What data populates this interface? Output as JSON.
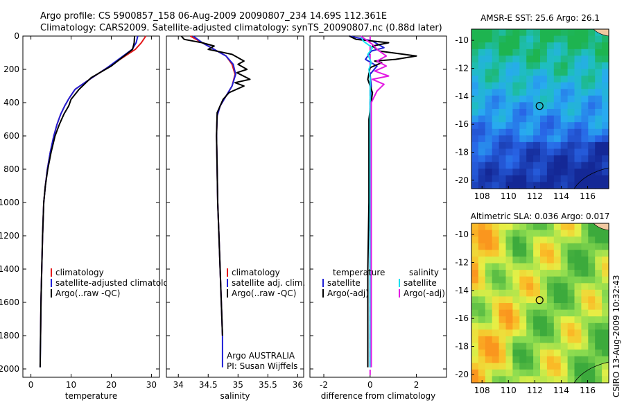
{
  "header": {
    "line1": "Argo profile: CS 5900857_158 06-Aug-2009 20090807_234 14.69S 112.361E",
    "line2": "Climatology: CARS2009. Satellite-adjusted climatology: synTS_20090807.nc (0.88d later)"
  },
  "credit": "CSIRO 13-Aug-2009 10:32:43",
  "colors": {
    "climatology": "#e41a1c",
    "satellite": "#1f1fd6",
    "argo": "#000000",
    "sal_satellite": "#19e0ef",
    "sal_argo": "#e31ae3"
  },
  "chart_data": [
    {
      "type": "line",
      "xlabel": "temperature",
      "ylabel": "",
      "xlim": [
        -2,
        32
      ],
      "ylim": [
        2050,
        0
      ],
      "xticks": [
        "0",
        "10",
        "20",
        "30"
      ],
      "yticks": [
        "0",
        "200",
        "400",
        "600",
        "800",
        "1000",
        "1200",
        "1400",
        "1600",
        "1800",
        "2000"
      ],
      "legend": [
        "climatology",
        "satellite-adjusted climatology",
        "Argo(..raw -QC)"
      ],
      "series": [
        {
          "name": "climatology",
          "color": "#e41a1c",
          "x": [
            28.6,
            27.5,
            26,
            19,
            14,
            11,
            9.6,
            8.4,
            7.4,
            6.5,
            5.7,
            4.8,
            4.1,
            3.6,
            3.2,
            2.9,
            2.7,
            2.5,
            2.4
          ],
          "y": [
            0,
            40,
            80,
            190,
            270,
            320,
            370,
            420,
            470,
            530,
            600,
            700,
            800,
            900,
            1000,
            1200,
            1400,
            1600,
            1800
          ]
        },
        {
          "name": "satellite-adjusted climatology",
          "color": "#1f1fd6",
          "x": [
            26.6,
            26.2,
            25.2,
            19,
            14,
            11,
            9.6,
            8.4,
            7.4,
            6.5,
            5.7,
            4.8,
            4.1,
            3.6,
            3.2,
            2.9,
            2.7,
            2.5,
            2.4,
            2.3
          ],
          "y": [
            0,
            40,
            80,
            190,
            270,
            320,
            370,
            420,
            470,
            530,
            600,
            700,
            800,
            900,
            1000,
            1200,
            1400,
            1600,
            1800,
            1990
          ]
        },
        {
          "name": "Argo(..raw -QC)",
          "color": "#000000",
          "x": [
            25.8,
            25.7,
            25.3,
            20,
            15,
            12,
            10,
            9.4,
            8.2,
            7.1,
            6,
            5,
            4.2,
            3.6,
            3.2,
            2.9,
            2.7,
            2.5,
            2.4,
            2.3
          ],
          "y": [
            0,
            40,
            80,
            180,
            250,
            320,
            380,
            420,
            470,
            530,
            600,
            700,
            800,
            900,
            1000,
            1200,
            1400,
            1600,
            1800,
            1990
          ]
        }
      ]
    },
    {
      "type": "line",
      "xlabel": "salinity",
      "ylabel": "",
      "xlim": [
        33.8,
        36.1
      ],
      "ylim": [
        2050,
        0
      ],
      "xticks": [
        "34",
        "34.5",
        "35",
        "35.5",
        "36"
      ],
      "legend": [
        "climatology",
        "satellite adj. clim.",
        "Argo(..raw -QC)"
      ],
      "annotations": [
        "Argo AUSTRALIA",
        "PI: Susan Wijffels"
      ],
      "series": [
        {
          "name": "climatology",
          "color": "#e41a1c",
          "x": [
            34.2,
            34.4,
            34.6,
            34.8,
            34.9,
            34.95,
            34.9,
            34.8,
            34.7,
            34.65,
            34.64,
            34.65,
            34.66,
            34.68,
            34.7,
            34.72,
            34.74
          ],
          "y": [
            0,
            40,
            80,
            120,
            170,
            230,
            300,
            360,
            420,
            480,
            600,
            800,
            1000,
            1200,
            1400,
            1600,
            1800
          ]
        },
        {
          "name": "satellite adj. clim.",
          "color": "#1f1fd6",
          "x": [
            34.25,
            34.4,
            34.6,
            34.8,
            34.92,
            34.96,
            34.9,
            34.8,
            34.7,
            34.65,
            34.64,
            34.65,
            34.66,
            34.68,
            34.7,
            34.72,
            34.74,
            34.74
          ],
          "y": [
            0,
            40,
            80,
            120,
            170,
            230,
            300,
            360,
            420,
            480,
            600,
            800,
            1000,
            1200,
            1400,
            1600,
            1800,
            1990
          ]
        },
        {
          "name": "Argo(..raw -QC)",
          "color": "#000000",
          "x": [
            34.05,
            34.1,
            34.4,
            34.6,
            34.5,
            34.9,
            35.1,
            35.0,
            35.15,
            34.98,
            35.2,
            34.95,
            35.1,
            34.85,
            34.75,
            34.65,
            34.64,
            34.65,
            34.66,
            34.68,
            34.7,
            34.72,
            34.74
          ],
          "y": [
            0,
            20,
            40,
            60,
            80,
            110,
            150,
            170,
            200,
            220,
            260,
            280,
            300,
            340,
            380,
            460,
            600,
            800,
            1000,
            1200,
            1400,
            1600,
            1800
          ]
        }
      ]
    },
    {
      "type": "line",
      "xlabel": "difference from climatology",
      "ylabel": "",
      "xlim": [
        -2.6,
        3.3
      ],
      "ylim": [
        2050,
        0
      ],
      "xticks": [
        "-2",
        "0",
        "2"
      ],
      "legend": [
        "temperature",
        "satellite",
        "Argo(-adj)",
        "salinity",
        "satellite",
        "Argo(-adj)"
      ],
      "series": [
        {
          "name": "temperature satellite",
          "color": "#1f1fd6",
          "x": [
            -0.9,
            0.1,
            0.6,
            0.05,
            -0.2,
            0.3,
            0,
            0.05,
            0,
            0,
            0,
            0,
            0,
            0
          ],
          "y": [
            0,
            30,
            70,
            90,
            140,
            180,
            230,
            300,
            400,
            600,
            1000,
            1400,
            1800,
            1990
          ]
        },
        {
          "name": "temperature Argo(-adj)",
          "color": "#000000",
          "x": [
            -0.9,
            -0.6,
            0.8,
            0.1,
            0.4,
            2.0,
            1.1,
            0.2,
            0.5,
            0,
            -0.1,
            0.1,
            -0.05,
            -0.05,
            -0.1,
            -0.1,
            -0.1
          ],
          "y": [
            0,
            20,
            40,
            60,
            90,
            120,
            140,
            150,
            160,
            190,
            260,
            340,
            500,
            1000,
            1400,
            1800,
            1990
          ]
        },
        {
          "name": "salinity satellite",
          "color": "#19e0ef",
          "x": [
            -0.4,
            -0.3,
            0.1,
            -0.1,
            0.05,
            -0.05,
            0,
            0,
            0,
            0,
            0,
            0,
            0
          ],
          "y": [
            0,
            30,
            70,
            110,
            160,
            200,
            250,
            300,
            400,
            700,
            1200,
            1600,
            1990
          ]
        },
        {
          "name": "salinity Argo(-adj)",
          "color": "#e31ae3",
          "x": [
            -0.4,
            -0.2,
            0.1,
            0.3,
            0.7,
            0.3,
            0.7,
            0.2,
            0.8,
            0.1,
            0.6,
            0.3,
            0.05,
            0.05,
            0.05,
            0.05
          ],
          "y": [
            0,
            20,
            50,
            80,
            120,
            150,
            180,
            210,
            240,
            260,
            290,
            330,
            400,
            800,
            1400,
            1990
          ]
        }
      ]
    },
    {
      "type": "heatmap",
      "title": "AMSR-E SST: 25.6  Argo: 26.1",
      "xticks": [
        "108",
        "110",
        "112",
        "114",
        "116"
      ],
      "yticks": [
        "-10",
        "-12",
        "-14",
        "-16",
        "-18",
        "-20"
      ],
      "xlim": [
        107.2,
        117.6
      ],
      "ylim": [
        -20.6,
        -9.2
      ],
      "marker": {
        "lon": 112.36,
        "lat": -14.69
      }
    },
    {
      "type": "heatmap",
      "title": "Altimetric SLA: 0.036  Argo: 0.017",
      "xticks": [
        "108",
        "110",
        "112",
        "114",
        "116"
      ],
      "yticks": [
        "-10",
        "-12",
        "-14",
        "-16",
        "-18",
        "-20"
      ],
      "xlim": [
        107.2,
        117.6
      ],
      "ylim": [
        -20.6,
        -9.2
      ],
      "marker": {
        "lon": 112.36,
        "lat": -14.69
      }
    }
  ]
}
